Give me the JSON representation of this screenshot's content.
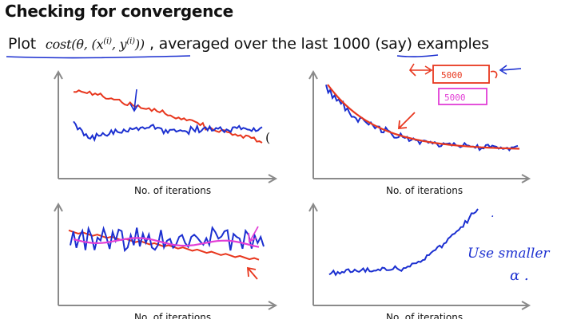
{
  "slide": {
    "title": "Checking for convergence",
    "subtitle": {
      "plot_word": "Plot",
      "formula": "cost(θ, (x(i), y(i)))",
      "formula_parts": {
        "cost": "cost(θ, (x",
        "sup_i_1": "(i)",
        "mid": ", y",
        "sup_i_2": "(i)",
        "end": "))"
      },
      "after": ", averaged over the last",
      "number": "1000",
      "tail": "(say) examples"
    }
  },
  "annotations": {
    "box_5000_top": "5000",
    "box_5000_bottom": "5000",
    "use_smaller_line1": "Use  smaller",
    "use_smaller_line2": "α ."
  },
  "plots": [
    {
      "id": "top-left",
      "xlabel": "No. of iterations"
    },
    {
      "id": "top-right",
      "xlabel": "No. of iterations"
    },
    {
      "id": "bottom-left",
      "xlabel": "No. of iterations"
    },
    {
      "id": "bottom-right",
      "xlabel": "No. of iterations"
    }
  ],
  "colors": {
    "blue": "#1b2fd0",
    "red": "#e8371e",
    "magenta": "#e23ed6",
    "axis": "#8a8a8a",
    "underline_blue": "#1b2fd0"
  }
}
